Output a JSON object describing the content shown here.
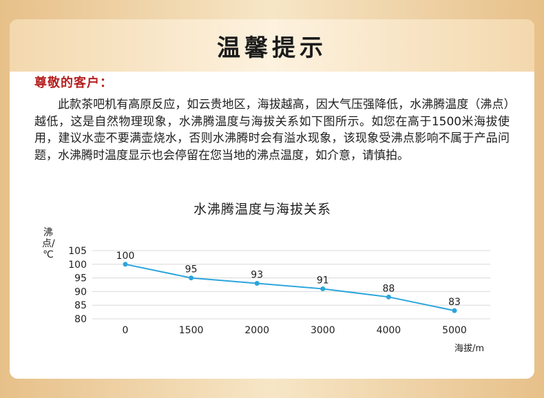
{
  "notice": {
    "title": "温馨提示",
    "greeting": "尊敬的客户：",
    "body": "此款茶吧机有高原反应，如云贵地区，海拔越高，因大气压强降低，水沸腾温度（沸点）越低，这是自然物理现象，水沸腾温度与海拔关系如下图所示。如您在高于1500米海拔使用，建议水壶不要满壶烧水，否则水沸腾时会有溢水现象，该现象受沸点影响不属于产品问题，水沸腾时温度显示也会停留在您当地的沸点温度，如介意，请慎拍。"
  },
  "colors": {
    "line": "#2aa5dc",
    "greeting": "#b61f1f",
    "grid": "#d8d8d8"
  },
  "chart_data": {
    "type": "line",
    "title": "水沸腾温度与海拔关系",
    "ylabel": "沸点/℃",
    "xlabel": "海拔/m",
    "categories": [
      "0",
      "1500",
      "2000",
      "3000",
      "4000",
      "5000"
    ],
    "values": [
      100,
      95,
      93,
      91,
      88,
      83
    ],
    "data_labels": [
      "100",
      "95",
      "93",
      "91",
      "88",
      "83"
    ],
    "yticks": [
      "80",
      "85",
      "90",
      "95",
      "100",
      "105"
    ],
    "ylim": [
      80,
      105
    ],
    "grid": true
  }
}
